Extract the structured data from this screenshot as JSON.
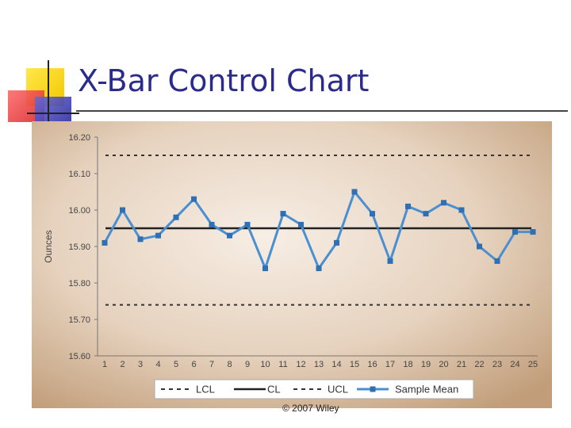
{
  "slide": {
    "title": "X-Bar Control Chart",
    "copyright": "© 2007 Wiley"
  },
  "colors": {
    "title": "#2b2b8c",
    "series_line": "#4a8fd0",
    "series_marker": "#2f6fb3",
    "limit_line": "#333333",
    "center_line": "#222222",
    "panel_light": "#f6ece2",
    "panel_dark": "#c8a684"
  },
  "chart_data": {
    "type": "line",
    "xlabel": "",
    "ylabel": "Ounces",
    "ylim": [
      15.6,
      16.2
    ],
    "yticks": [
      "15.60",
      "15.70",
      "15.80",
      "15.90",
      "16.00",
      "16.10",
      "16.20"
    ],
    "ytick_values": [
      15.6,
      15.7,
      15.8,
      15.9,
      16.0,
      16.1,
      16.2
    ],
    "x": [
      1,
      2,
      3,
      4,
      5,
      6,
      7,
      8,
      9,
      10,
      11,
      12,
      13,
      14,
      15,
      16,
      17,
      18,
      19,
      20,
      21,
      22,
      23,
      24,
      25
    ],
    "grid": false,
    "legend_position": "bottom",
    "series": [
      {
        "name": "Sample Mean",
        "style": "line-marker",
        "values": [
          15.91,
          16.0,
          15.92,
          15.93,
          15.98,
          16.03,
          15.96,
          15.93,
          15.96,
          15.84,
          15.99,
          15.96,
          15.84,
          15.91,
          16.05,
          15.99,
          15.86,
          16.01,
          15.99,
          16.02,
          16.0,
          15.9,
          15.86,
          15.94,
          15.94
        ]
      }
    ],
    "reference_lines": [
      {
        "name": "UCL",
        "value": 16.15,
        "style": "dashed"
      },
      {
        "name": "CL",
        "value": 15.95,
        "style": "solid"
      },
      {
        "name": "LCL",
        "value": 15.74,
        "style": "dashed"
      }
    ],
    "legend": [
      "LCL",
      "CL",
      "UCL",
      "Sample Mean"
    ]
  }
}
